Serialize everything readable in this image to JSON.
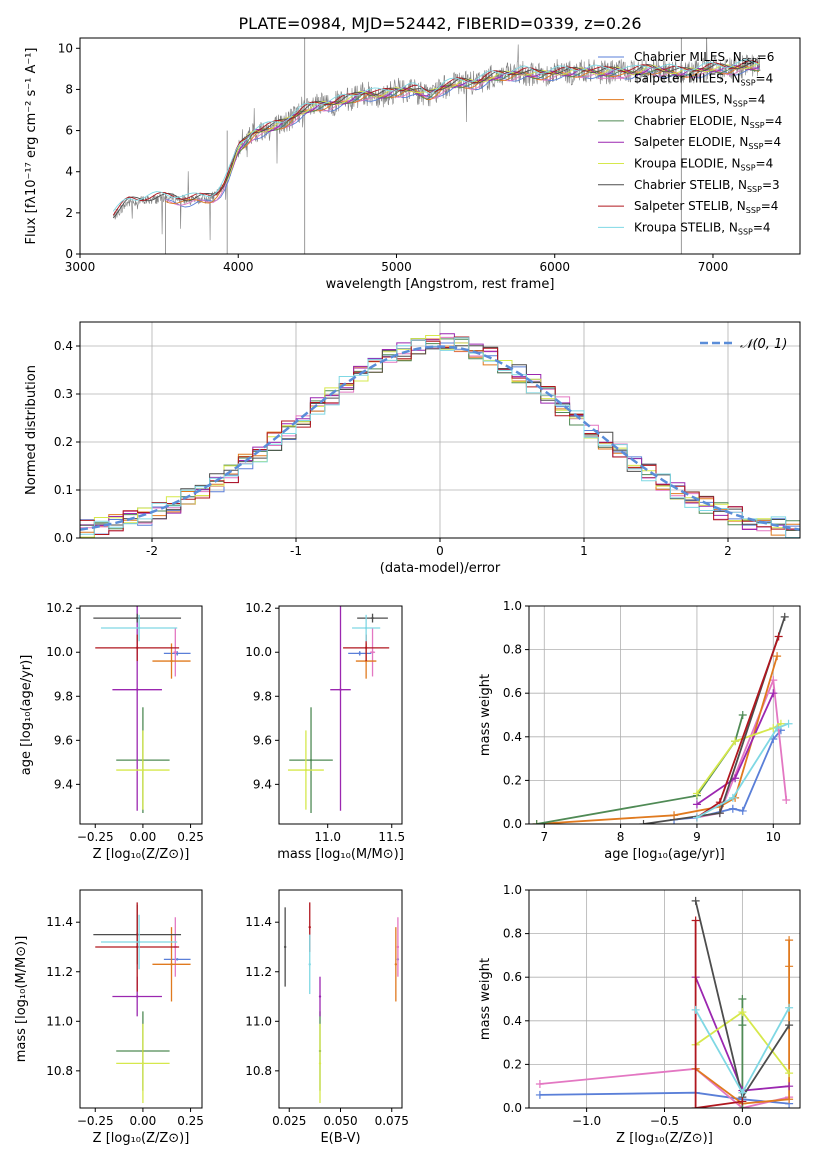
{
  "title": "PLATE=0984, MJD=52442, FIBERID=0339, z=0.26",
  "chart_data": [
    {
      "id": "spectrum",
      "type": "line",
      "xlabel": "wavelength [Angstrom, rest frame]",
      "ylabel": "Flux [fλ10⁻¹⁷ erg cm⁻² s⁻¹ A⁻¹]",
      "xlim": [
        3000,
        7550
      ],
      "ylim": [
        0,
        10.5
      ],
      "xticks": [
        3000,
        4000,
        5000,
        6000,
        7000
      ],
      "yticks": [
        0,
        2,
        4,
        6,
        8,
        10
      ],
      "legend_position": "upper-right",
      "continuum": {
        "x": [
          3210,
          3300,
          3400,
          3500,
          3600,
          3700,
          3800,
          3850,
          3900,
          3950,
          4000,
          4100,
          4200,
          4300,
          4400,
          4500,
          4600,
          4700,
          4800,
          4900,
          5000,
          5100,
          5200,
          5300,
          5400,
          5500,
          5600,
          5700,
          5800,
          5900,
          6000,
          6100,
          6200,
          6300,
          6400,
          6500,
          6600,
          6700,
          6800,
          6900,
          7000,
          7100,
          7200,
          7300
        ],
        "y": [
          1.8,
          2.5,
          2.6,
          2.7,
          2.7,
          2.6,
          2.7,
          2.8,
          3.2,
          4.0,
          5.1,
          5.9,
          6.1,
          6.4,
          6.9,
          7.2,
          7.3,
          7.5,
          7.8,
          7.7,
          7.9,
          8.0,
          7.7,
          8.1,
          8.3,
          8.3,
          8.6,
          8.7,
          8.8,
          8.7,
          8.8,
          8.8,
          8.9,
          8.8,
          8.9,
          8.8,
          9.0,
          8.9,
          8.8,
          8.9,
          9.0,
          9.0,
          9.1,
          9.1
        ]
      },
      "series": [
        {
          "name": "Chabrier MILES, N_SSP=6",
          "label": "Chabrier MILES, N",
          "sub": "SSP",
          "suffix": "=6",
          "color": "#5a7fd8",
          "xstart": 3540
        },
        {
          "name": "Salpeter MILES, N_SSP=4",
          "label": "Salpeter MILES, N",
          "sub": "SSP",
          "suffix": "=4",
          "color": "#e377c2",
          "xstart": 3540
        },
        {
          "name": "Kroupa MILES, N_SSP=4",
          "label": "Kroupa MILES, N",
          "sub": "SSP",
          "suffix": "=4",
          "color": "#e07a1f",
          "xstart": 3540
        },
        {
          "name": "Chabrier ELODIE, N_SSP=4",
          "label": "Chabrier ELODIE, N",
          "sub": "SSP",
          "suffix": "=4",
          "color": "#4f8a55",
          "xstart": 3920
        },
        {
          "name": "Salpeter ELODIE, N_SSP=4",
          "label": "Salpeter ELODIE, N",
          "sub": "SSP",
          "suffix": "=4",
          "color": "#9b27b0",
          "xstart": 3920
        },
        {
          "name": "Kroupa ELODIE, N_SSP=4",
          "label": "Kroupa ELODIE, N",
          "sub": "SSP",
          "suffix": "=4",
          "color": "#d6e84c",
          "xstart": 3920
        },
        {
          "name": "Chabrier STELIB, N_SSP=3",
          "label": "Chabrier STELIB, N",
          "sub": "SSP",
          "suffix": "=3",
          "color": "#4d4d4d",
          "xstart": 3210
        },
        {
          "name": "Salpeter STELIB, N_SSP=4",
          "label": "Salpeter STELIB, N",
          "sub": "SSP",
          "suffix": "=4",
          "color": "#b0171f",
          "xstart": 3210
        },
        {
          "name": "Kroupa STELIB, N_SSP=4",
          "label": "Kroupa STELIB, N",
          "sub": "SSP",
          "suffix": "=4",
          "color": "#7fd8e4",
          "xstart": 3210
        }
      ],
      "data_color": "#808080"
    },
    {
      "id": "residuals",
      "type": "histogram",
      "xlabel": "(data-model)/error",
      "ylabel": "Normed distribution",
      "xlim": [
        -2.5,
        2.5
      ],
      "ylim": [
        0,
        0.45
      ],
      "xticks": [
        -2,
        -1,
        0,
        1,
        2
      ],
      "yticks": [
        0.0,
        0.1,
        0.2,
        0.3,
        0.4
      ],
      "grid": true,
      "legend_position": "upper-right",
      "reference_label": "𝒩(0, 1)",
      "reference_color": "#5a8dd8",
      "bin_width": 0.1
    },
    {
      "id": "age-vs-Z",
      "type": "errorbar",
      "xlabel": "Z [log₁₀(Z/Z⊙)]",
      "ylabel": "age  [log₁₀(age/yr)]",
      "xlim": [
        -0.33,
        0.31
      ],
      "ylim": [
        9.22,
        10.21
      ],
      "xticks": [
        -0.25,
        0.0,
        0.25
      ],
      "xtick_labels": [
        "−0.25",
        "0.00",
        "0.25"
      ],
      "yticks": [
        9.4,
        9.6,
        9.8,
        10.0,
        10.2
      ],
      "points": [
        {
          "series": "Chabrier MILES",
          "x": 0.18,
          "xerr": 0.07,
          "y": 9.995,
          "yerr": 0.01
        },
        {
          "series": "Salpeter MILES",
          "x": 0.17,
          "xerr": 0.01,
          "y": 10.0,
          "yerr": 0.11
        },
        {
          "series": "Kroupa MILES",
          "x": 0.15,
          "xerr": 0.1,
          "y": 9.96,
          "yerr": 0.08
        },
        {
          "series": "Chabrier ELODIE",
          "x": 0.0,
          "xerr": 0.14,
          "y": 9.51,
          "yerr": 0.24
        },
        {
          "series": "Salpeter ELODIE",
          "x": -0.03,
          "xerr": 0.13,
          "y": 9.83,
          "yerr": 0.55
        },
        {
          "series": "Kroupa ELODIE",
          "x": 0.0,
          "xerr": 0.14,
          "y": 9.465,
          "yerr": 0.18
        },
        {
          "series": "Chabrier STELIB",
          "x": -0.03,
          "xerr": 0.23,
          "y": 10.155,
          "yerr": 0.02
        },
        {
          "series": "Salpeter STELIB",
          "x": -0.03,
          "xerr": 0.22,
          "y": 10.02,
          "yerr": 0.06
        },
        {
          "series": "Kroupa STELIB",
          "x": -0.02,
          "xerr": 0.2,
          "y": 10.11,
          "yerr": 0.06
        }
      ]
    },
    {
      "id": "age-vs-mass",
      "type": "errorbar",
      "xlabel": "mass [log₁₀(M/M⊙)]",
      "xlim": [
        10.62,
        11.58
      ],
      "ylim": [
        9.22,
        10.21
      ],
      "xticks": [
        11.0,
        11.5
      ],
      "xtick_labels": [
        "11.0",
        "11.5"
      ],
      "yticks": [
        9.4,
        9.6,
        9.8,
        10.0,
        10.2
      ],
      "points": [
        {
          "series": "Chabrier MILES",
          "x": 11.25,
          "xerr": 0.09,
          "y": 9.995,
          "yerr": 0.01
        },
        {
          "series": "Salpeter MILES",
          "x": 11.35,
          "xerr": 0.02,
          "y": 10.0,
          "yerr": 0.11
        },
        {
          "series": "Kroupa MILES",
          "x": 11.3,
          "xerr": 0.08,
          "y": 9.96,
          "yerr": 0.08
        },
        {
          "series": "Chabrier ELODIE",
          "x": 10.87,
          "xerr": 0.17,
          "y": 9.51,
          "yerr": 0.24
        },
        {
          "series": "Salpeter ELODIE",
          "x": 11.1,
          "xerr": 0.08,
          "y": 9.83,
          "yerr": 0.55
        },
        {
          "series": "Kroupa ELODIE",
          "x": 10.83,
          "xerr": 0.14,
          "y": 9.465,
          "yerr": 0.18
        },
        {
          "series": "Chabrier STELIB",
          "x": 11.35,
          "xerr": 0.12,
          "y": 10.155,
          "yerr": 0.02
        },
        {
          "series": "Salpeter STELIB",
          "x": 11.3,
          "xerr": 0.18,
          "y": 10.02,
          "yerr": 0.06
        },
        {
          "series": "Kroupa STELIB",
          "x": 11.3,
          "xerr": 0.11,
          "y": 10.11,
          "yerr": 0.06
        }
      ]
    },
    {
      "id": "mass-weight-vs-age",
      "type": "line",
      "xlabel": "age  [log₁₀(age/yr)]",
      "ylabel": "mass weight",
      "xlim": [
        6.8,
        10.35
      ],
      "ylim": [
        0,
        1.0
      ],
      "xticks": [
        7,
        8,
        9,
        10
      ],
      "yticks": [
        0.0,
        0.2,
        0.4,
        0.6,
        0.8,
        1.0
      ],
      "grid": true,
      "series": [
        {
          "name": "Chabrier MILES",
          "x": [
            8.7,
            9.0,
            9.47,
            9.6,
            10.0,
            10.1
          ],
          "y": [
            0.02,
            0.03,
            0.07,
            0.06,
            0.39,
            0.43
          ]
        },
        {
          "name": "Salpeter MILES",
          "x": [
            9.0,
            9.3,
            10.0,
            10.17
          ],
          "y": [
            0.03,
            0.05,
            0.66,
            0.11
          ]
        },
        {
          "name": "Kroupa MILES",
          "x": [
            6.9,
            8.7,
            9.3,
            9.5,
            10.05
          ],
          "y": [
            0.0,
            0.04,
            0.08,
            0.12,
            0.77
          ]
        },
        {
          "name": "Chabrier ELODIE",
          "x": [
            6.9,
            9.0,
            9.5,
            9.6
          ],
          "y": [
            0.0,
            0.13,
            0.38,
            0.5
          ]
        },
        {
          "name": "Salpeter ELODIE",
          "x": [
            9.0,
            9.5,
            10.0
          ],
          "y": [
            0.09,
            0.21,
            0.6
          ]
        },
        {
          "name": "Kroupa ELODIE",
          "x": [
            9.0,
            9.5,
            10.0,
            10.1
          ],
          "y": [
            0.14,
            0.38,
            0.44,
            0.46
          ]
        },
        {
          "name": "Chabrier STELIB",
          "x": [
            8.3,
            9.3,
            10.15
          ],
          "y": [
            0.0,
            0.05,
            0.95
          ]
        },
        {
          "name": "Salpeter STELIB",
          "x": [
            9.0,
            9.3,
            10.07
          ],
          "y": [
            0.03,
            0.1,
            0.86
          ]
        },
        {
          "name": "Kroupa STELIB",
          "x": [
            9.0,
            9.47,
            10.05,
            10.2
          ],
          "y": [
            0.03,
            0.12,
            0.44,
            0.46
          ]
        }
      ]
    },
    {
      "id": "mass-vs-Z",
      "type": "errorbar",
      "xlabel": "Z [log₁₀(Z/Z⊙)]",
      "ylabel": "mass [log₁₀(M/M⊙)]",
      "xlim": [
        -0.33,
        0.31
      ],
      "ylim": [
        10.65,
        11.53
      ],
      "xticks": [
        -0.25,
        0.0,
        0.25
      ],
      "xtick_labels": [
        "−0.25",
        "0.00",
        "0.25"
      ],
      "yticks": [
        10.8,
        11.0,
        11.2,
        11.4
      ],
      "points": [
        {
          "series": "Chabrier MILES",
          "x": 0.18,
          "xerr": 0.07,
          "y": 11.25,
          "yerr": 0.0
        },
        {
          "series": "Salpeter MILES",
          "x": 0.17,
          "xerr": 0.01,
          "y": 11.3,
          "yerr": 0.12
        },
        {
          "series": "Kroupa MILES",
          "x": 0.15,
          "xerr": 0.1,
          "y": 11.23,
          "yerr": 0.15
        },
        {
          "series": "Chabrier ELODIE",
          "x": 0.0,
          "xerr": 0.14,
          "y": 10.88,
          "yerr": 0.16
        },
        {
          "series": "Salpeter ELODIE",
          "x": -0.03,
          "xerr": 0.13,
          "y": 11.1,
          "yerr": 0.08
        },
        {
          "series": "Kroupa ELODIE",
          "x": 0.0,
          "xerr": 0.14,
          "y": 10.83,
          "yerr": 0.16
        },
        {
          "series": "Chabrier STELIB",
          "x": -0.03,
          "xerr": 0.23,
          "y": 11.35,
          "yerr": 0.12
        },
        {
          "series": "Salpeter STELIB",
          "x": -0.03,
          "xerr": 0.22,
          "y": 11.3,
          "yerr": 0.18
        },
        {
          "series": "Kroupa STELIB",
          "x": -0.02,
          "xerr": 0.2,
          "y": 11.32,
          "yerr": 0.11
        }
      ]
    },
    {
      "id": "mass-vs-ebv",
      "type": "errorbar",
      "xlabel": "E(B-V)",
      "xlim": [
        0.02,
        0.08
      ],
      "ylim": [
        10.65,
        11.53
      ],
      "xticks": [
        0.025,
        0.05,
        0.075
      ],
      "xtick_labels": [
        "0.025",
        "0.050",
        "0.075"
      ],
      "yticks": [
        10.8,
        11.0,
        11.2,
        11.4
      ],
      "points": [
        {
          "series": "Chabrier MILES",
          "x": 0.078,
          "y": 11.25,
          "yerr": 0.0
        },
        {
          "series": "Salpeter MILES",
          "x": 0.078,
          "y": 11.3,
          "yerr": 0.12
        },
        {
          "series": "Kroupa MILES",
          "x": 0.077,
          "y": 11.23,
          "yerr": 0.15
        },
        {
          "series": "Chabrier ELODIE",
          "x": 0.04,
          "y": 10.88,
          "yerr": 0.16
        },
        {
          "series": "Salpeter ELODIE",
          "x": 0.04,
          "y": 11.1,
          "yerr": 0.08
        },
        {
          "series": "Kroupa ELODIE",
          "x": 0.04,
          "y": 10.83,
          "yerr": 0.16
        },
        {
          "series": "Chabrier STELIB",
          "x": 0.023,
          "y": 11.3,
          "yerr": 0.16
        },
        {
          "series": "Salpeter STELIB",
          "x": 0.035,
          "y": 11.38,
          "yerr": 0.1
        },
        {
          "series": "Kroupa STELIB",
          "x": 0.035,
          "y": 11.23,
          "yerr": 0.12
        }
      ]
    },
    {
      "id": "mass-weight-vs-Z",
      "type": "line",
      "xlabel": "Z [log₁₀(Z/Z⊙)]",
      "ylabel": "mass weight",
      "xlim": [
        -1.37,
        0.37
      ],
      "ylim": [
        0,
        1.0
      ],
      "xticks": [
        -1.0,
        -0.5,
        0.0
      ],
      "xtick_labels": [
        "−1.0",
        "−0.5",
        "0.0"
      ],
      "yticks": [
        0.0,
        0.2,
        0.4,
        0.6,
        0.8,
        1.0
      ],
      "grid": true,
      "series": [
        {
          "name": "Chabrier MILES",
          "x": [
            -1.3,
            -0.3,
            0.0,
            0.3
          ],
          "y": [
            0.06,
            0.07,
            0.04,
            0.02
          ]
        },
        {
          "name": "Salpeter MILES",
          "x": [
            -1.3,
            -0.3,
            0.0,
            0.3
          ],
          "y": [
            0.11,
            0.18,
            0.0,
            0.05
          ]
        },
        {
          "name": "Kroupa MILES",
          "x": [
            -0.3,
            0.0,
            0.3,
            0.3,
            0.3
          ],
          "y": [
            0.18,
            0.02,
            0.04,
            0.65,
            0.77
          ]
        },
        {
          "name": "Chabrier ELODIE",
          "x": [
            0.0,
            0.0,
            0.0
          ],
          "y": [
            0.0,
            0.38,
            0.5
          ]
        },
        {
          "name": "Salpeter ELODIE",
          "x": [
            -0.3,
            0.0,
            0.3
          ],
          "y": [
            0.6,
            0.08,
            0.1
          ]
        },
        {
          "name": "Kroupa ELODIE",
          "x": [
            -0.3,
            0.0,
            0.3
          ],
          "y": [
            0.29,
            0.44,
            0.16
          ]
        },
        {
          "name": "Chabrier STELIB",
          "x": [
            -0.3,
            0.0,
            0.3
          ],
          "y": [
            0.95,
            0.05,
            0.38
          ]
        },
        {
          "name": "Salpeter STELIB",
          "x": [
            -0.3,
            -0.3,
            0.0
          ],
          "y": [
            0.86,
            0.0,
            0.03
          ]
        },
        {
          "name": "Kroupa STELIB",
          "x": [
            -0.3,
            0.0,
            0.3
          ],
          "y": [
            0.45,
            0.07,
            0.46
          ]
        }
      ]
    }
  ]
}
